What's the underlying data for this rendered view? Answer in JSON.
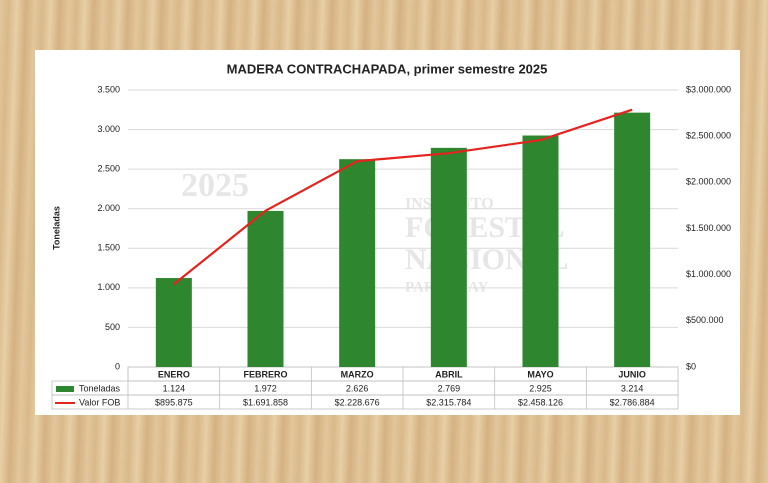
{
  "chart_data": {
    "type": "bar-line",
    "title": "MADERA CONTRACHAPADA,  primer semestre 2025",
    "ylabel": "Toneladas",
    "watermark": [
      "2025",
      "INSTITUTO",
      "FORESTAL",
      "NACIONAL",
      "PARAGUAY"
    ],
    "categories": [
      "ENERO",
      "FEBRERO",
      "MARZO",
      "ABRIL",
      "MAYO",
      "JUNIO"
    ],
    "series": [
      {
        "name": "Toneladas",
        "type": "bar",
        "color": "#2e862e",
        "values": [
          1124,
          1972,
          2626,
          2769,
          2925,
          3214
        ],
        "value_labels": [
          "1.124",
          "1.972",
          "2.626",
          "2.769",
          "2.925",
          "3.214"
        ]
      },
      {
        "name": "Valor FOB",
        "type": "line",
        "axis": "y2",
        "color": "#e3241f",
        "values": [
          895875,
          1691858,
          2228676,
          2315784,
          2458126,
          2786884
        ],
        "value_labels": [
          "$895.875",
          "$1.691.858",
          "$2.228.676",
          "$2.315.784",
          "$2.458.126",
          "$2.786.884"
        ]
      }
    ],
    "ylim": [
      0,
      3500
    ],
    "yticks": [
      0,
      500,
      {
        "value": 1000,
        "label": "1.000"
      },
      {
        "value": 1500,
        "label": "1.500"
      },
      {
        "value": 2000,
        "label": "2.000"
      },
      {
        "value": 2500,
        "label": "2.500"
      },
      {
        "value": 3000,
        "label": "3.000"
      },
      {
        "value": 3500,
        "label": "3.500"
      }
    ],
    "y2lim": [
      0,
      3000000
    ],
    "y2ticks": [
      {
        "value": 0,
        "label": "$0"
      },
      {
        "value": 500000,
        "label": "$500.000"
      },
      {
        "value": 1000000,
        "label": "$1.000.000"
      },
      {
        "value": 1500000,
        "label": "$1.500.000"
      },
      {
        "value": 2000000,
        "label": "$2.000.000"
      },
      {
        "value": 2500000,
        "label": "$2.500.000"
      },
      {
        "value": 3000000,
        "label": "$3.000.000"
      }
    ],
    "grid": true
  }
}
